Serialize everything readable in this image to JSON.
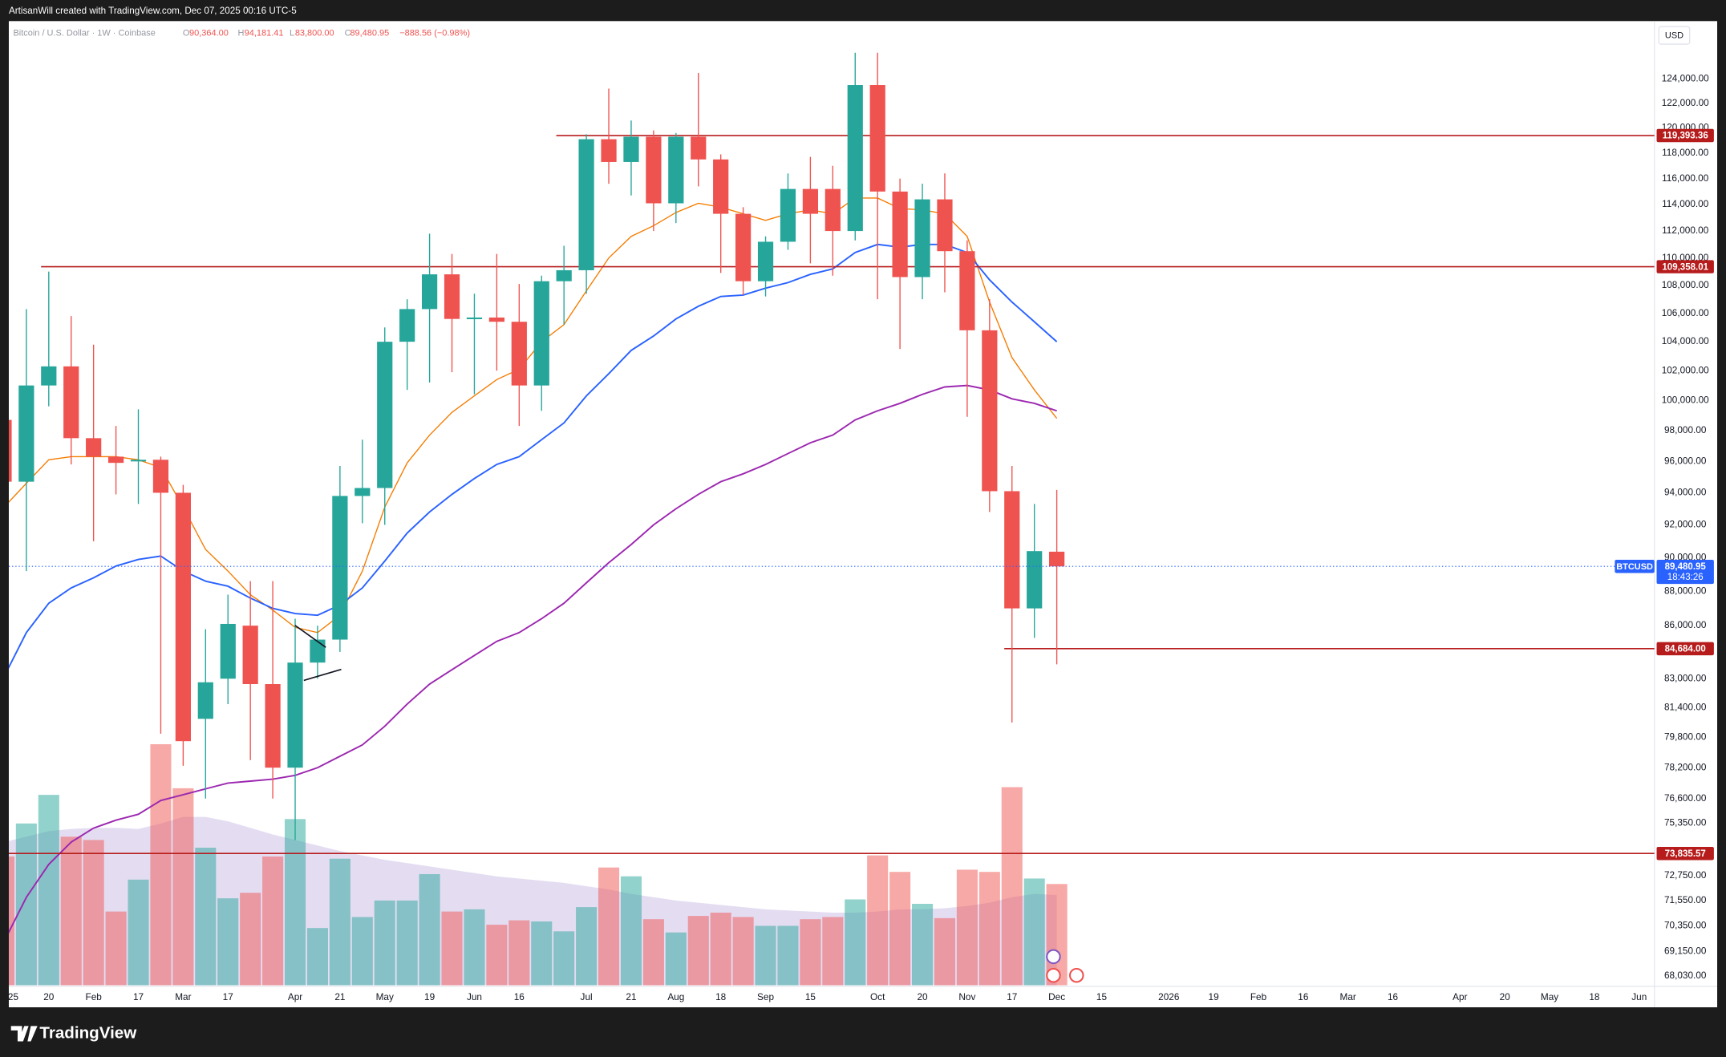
{
  "header": {
    "author_line": "ArtisanWill created with TradingView.com, Dec 07, 2025 00:16 UTC-5"
  },
  "legend": {
    "symbol": "Bitcoin / U.S. Dollar · 1W · Coinbase",
    "o_label": "O",
    "open": "90,364.00",
    "h_label": "H",
    "high": "94,181.41",
    "l_label": "L",
    "low": "83,800.00",
    "c_label": "C",
    "close": "89,480.95",
    "change": "−888.56 (−0.98%)"
  },
  "currency": "USD",
  "footer": {
    "brand": "TradingView"
  },
  "chart_data": {
    "type": "candlestick",
    "log_scale": true,
    "ylim": [
      67600,
      128900
    ],
    "yticks": [
      {
        "value": 124000,
        "label": "124,000.00"
      },
      {
        "value": 122000,
        "label": "122,000.00"
      },
      {
        "value": 120000,
        "label": "120,000.00"
      },
      {
        "value": 118000,
        "label": "118,000.00"
      },
      {
        "value": 116000,
        "label": "116,000.00"
      },
      {
        "value": 114000,
        "label": "114,000.00"
      },
      {
        "value": 112000,
        "label": "112,000.00"
      },
      {
        "value": 110000,
        "label": "110,000.00"
      },
      {
        "value": 108000,
        "label": "108,000.00"
      },
      {
        "value": 106000,
        "label": "106,000.00"
      },
      {
        "value": 104000,
        "label": "104,000.00"
      },
      {
        "value": 102000,
        "label": "102,000.00"
      },
      {
        "value": 100000,
        "label": "100,000.00"
      },
      {
        "value": 98000,
        "label": "98,000.00"
      },
      {
        "value": 96000,
        "label": "96,000.00"
      },
      {
        "value": 94000,
        "label": "94,000.00"
      },
      {
        "value": 92000,
        "label": "92,000.00"
      },
      {
        "value": 90000,
        "label": "90,000.00"
      },
      {
        "value": 88000,
        "label": "88,000.00"
      },
      {
        "value": 86000,
        "label": "86,000.00"
      },
      {
        "value": 83000,
        "label": "83,000.00"
      },
      {
        "value": 81400,
        "label": "81,400.00"
      },
      {
        "value": 79800,
        "label": "79,800.00"
      },
      {
        "value": 78200,
        "label": "78,200.00"
      },
      {
        "value": 76600,
        "label": "76,600.00"
      },
      {
        "value": 75350,
        "label": "75,350.00"
      },
      {
        "value": 72750,
        "label": "72,750.00"
      },
      {
        "value": 71550,
        "label": "71,550.00"
      },
      {
        "value": 70350,
        "label": "70,350.00"
      },
      {
        "value": 69150,
        "label": "69,150.00"
      },
      {
        "value": 68030,
        "label": "68,030.00"
      }
    ],
    "categories": [
      "25",
      null,
      "20",
      null,
      "Feb",
      null,
      "17",
      null,
      "Mar",
      null,
      "17",
      null,
      null,
      "Apr",
      null,
      "21",
      null,
      "May",
      null,
      "19",
      null,
      "Jun",
      null,
      "16",
      null,
      null,
      "Jul",
      null,
      "21",
      null,
      "Aug",
      null,
      "18",
      null,
      "Sep",
      null,
      "15",
      null,
      null,
      "Oct",
      null,
      "20",
      null,
      "Nov",
      null,
      "17",
      null,
      "Dec",
      null,
      "15",
      null,
      null,
      "2026",
      null,
      "19",
      null,
      "Feb",
      null,
      "16",
      null,
      "Mar",
      null,
      "16",
      null,
      null,
      "Apr",
      null,
      "20",
      null,
      "May",
      null,
      "18",
      null,
      "Jun"
    ],
    "open": [
      98700,
      94700,
      101000,
      102300,
      97500,
      96300,
      96000,
      96100,
      94000,
      80800,
      83000,
      86000,
      82700,
      78200,
      83900,
      85200,
      93800,
      94300,
      104000,
      106300,
      108800,
      105600,
      105700,
      105400,
      101000,
      108300,
      109100,
      119100,
      117300,
      119300,
      114100,
      119300,
      117500,
      113300,
      108300,
      111200,
      115200,
      115200,
      112000,
      123500,
      115000,
      108600,
      114400,
      110500,
      104800,
      94100,
      87000,
      90364,
      null,
      null,
      null,
      null,
      null,
      null,
      null,
      null,
      null,
      null,
      null,
      null,
      null,
      null,
      null,
      null,
      null,
      null,
      null,
      null,
      null,
      null,
      null,
      null,
      null,
      null
    ],
    "high": [
      99200,
      106300,
      109000,
      105800,
      103800,
      98300,
      99400,
      96300,
      94500,
      85800,
      87800,
      88600,
      88600,
      86400,
      86000,
      95700,
      97400,
      105000,
      107000,
      111800,
      110300,
      107400,
      110300,
      108100,
      108700,
      110900,
      119500,
      123200,
      120600,
      119800,
      119600,
      124500,
      117900,
      113800,
      111600,
      116400,
      117700,
      117000,
      126200,
      126200,
      116000,
      115600,
      116400,
      111300,
      107000,
      95700,
      93300,
      94181.41,
      null,
      null,
      null,
      null,
      null,
      null,
      null,
      null,
      null,
      null,
      null,
      null,
      null,
      null,
      null,
      null,
      null,
      null,
      null,
      null,
      null,
      null,
      null,
      null,
      null,
      null
    ],
    "low": [
      93300,
      89200,
      99600,
      95800,
      91000,
      93900,
      93300,
      80000,
      78300,
      76600,
      81600,
      78600,
      76600,
      74500,
      83000,
      84500,
      92100,
      92000,
      100700,
      101200,
      101900,
      100400,
      102000,
      98300,
      99300,
      105200,
      107400,
      115600,
      114700,
      112000,
      112600,
      115400,
      108900,
      107300,
      107200,
      110600,
      109600,
      108700,
      111300,
      107000,
      103500,
      107000,
      107500,
      98900,
      92800,
      80600,
      85300,
      83800,
      null,
      null,
      null,
      null,
      null,
      null,
      null,
      null,
      null,
      null,
      null,
      null,
      null,
      null,
      null,
      null,
      null,
      null,
      null,
      null,
      null,
      null,
      null,
      null,
      null,
      null
    ],
    "close": [
      94700,
      101000,
      102300,
      97500,
      96300,
      95900,
      96100,
      94000,
      79600,
      82800,
      86100,
      82700,
      78200,
      83900,
      85200,
      93800,
      94300,
      104000,
      106300,
      108800,
      105600,
      105700,
      105400,
      101000,
      108300,
      109100,
      119100,
      117300,
      119300,
      114100,
      119300,
      117500,
      113300,
      108300,
      111200,
      115200,
      113300,
      112000,
      123500,
      115000,
      108600,
      114400,
      110500,
      104800,
      94100,
      87000,
      90400,
      89480.95,
      null,
      null,
      null,
      null,
      null,
      null,
      null,
      null,
      null,
      null,
      null,
      null,
      null,
      null,
      null,
      null,
      null,
      null,
      null,
      null,
      null,
      null,
      null,
      null,
      null,
      null
    ],
    "up_color": "#26a69a",
    "down_color": "#ef5350",
    "volume": [
      117,
      147,
      173,
      135,
      132,
      67,
      96,
      219,
      179,
      125,
      79,
      84,
      117,
      151,
      52,
      115,
      62,
      77,
      77,
      101,
      67,
      69,
      55,
      59,
      58,
      49,
      71,
      107,
      99,
      60,
      48,
      63,
      66,
      62,
      54,
      54,
      60,
      62,
      78,
      118,
      103,
      74,
      61,
      105,
      103,
      180,
      97,
      92,
      null,
      null,
      null,
      null,
      null,
      null,
      null,
      null,
      null,
      null,
      null,
      null,
      null,
      null,
      null,
      null,
      null,
      null,
      null,
      null,
      null,
      null,
      null,
      null,
      null,
      null
    ],
    "volume_ma": [
      130,
      135,
      140,
      142,
      143,
      143,
      142,
      147,
      153,
      153,
      149,
      143,
      137,
      132,
      127,
      122,
      118,
      114,
      111,
      108,
      105,
      102,
      99,
      97,
      95,
      93,
      90,
      87,
      83,
      80,
      77,
      75,
      73,
      71,
      69,
      68,
      67,
      66,
      66,
      67,
      69,
      69,
      70,
      72,
      75,
      80,
      83,
      82,
      null,
      null,
      null,
      null,
      null,
      null,
      null,
      null,
      null,
      null,
      null,
      null,
      null,
      null,
      null,
      null,
      null,
      null,
      null,
      null,
      null,
      null,
      null,
      null,
      null,
      null
    ],
    "volume_ma_color": "#b39ddb",
    "moving_averages": [
      {
        "color": "#f57c00",
        "values": [
          93100,
          94600,
          96100,
          96300,
          96300,
          96300,
          96100,
          95600,
          93100,
          90500,
          89200,
          87800,
          86900,
          85900,
          85600,
          86600,
          89200,
          93100,
          95900,
          97700,
          99200,
          100300,
          101400,
          102100,
          104000,
          105200,
          107600,
          110000,
          111600,
          112400,
          113400,
          114100,
          113800,
          113300,
          112800,
          113300,
          113600,
          113300,
          114500,
          114500,
          113700,
          113600,
          113300,
          111600,
          106800,
          102900,
          100700,
          98800,
          null,
          null,
          null,
          null,
          null,
          null,
          null,
          null,
          null,
          null,
          null,
          null,
          null,
          null,
          null,
          null,
          null,
          null,
          null,
          null,
          null,
          null,
          null,
          null,
          null,
          null
        ]
      },
      {
        "color": "#2962ff",
        "values": [
          83100,
          85600,
          87300,
          88200,
          88800,
          89500,
          89900,
          90100,
          89200,
          88600,
          88300,
          87600,
          87000,
          86700,
          86600,
          87200,
          88200,
          89800,
          91500,
          92800,
          93900,
          94900,
          95800,
          96300,
          97400,
          98500,
          100300,
          101800,
          103400,
          104400,
          105600,
          106500,
          107200,
          107300,
          107800,
          108200,
          108800,
          109200,
          110400,
          111000,
          110800,
          111000,
          111000,
          110400,
          108400,
          106800,
          105400,
          104000,
          null,
          null,
          null,
          null,
          null,
          null,
          null,
          null,
          null,
          null,
          null,
          null,
          null,
          null,
          null,
          null,
          null,
          null,
          null,
          null,
          null,
          null,
          null,
          null,
          null,
          null
        ]
      },
      {
        "color": "#9c27b0",
        "values": [
          69600,
          71700,
          73300,
          74400,
          75100,
          75500,
          75800,
          76500,
          76800,
          77100,
          77400,
          77500,
          77600,
          77800,
          78200,
          78800,
          79400,
          80400,
          81600,
          82700,
          83500,
          84300,
          85100,
          85600,
          86400,
          87300,
          88500,
          89700,
          90800,
          92000,
          93000,
          93900,
          94700,
          95200,
          95800,
          96500,
          97200,
          97700,
          98700,
          99300,
          99800,
          100400,
          100900,
          101000,
          100700,
          100100,
          99800,
          99300,
          null,
          null,
          null,
          null,
          null,
          null,
          null,
          null,
          null,
          null,
          null,
          null,
          null,
          null,
          null,
          null,
          null,
          null,
          null,
          null,
          null,
          null,
          null,
          null,
          null,
          null
        ]
      }
    ],
    "levels": [
      {
        "value": 119393.36,
        "label": "119,393.36"
      },
      {
        "value": 109358.01,
        "label": "109,358.01"
      },
      {
        "value": 84684.0,
        "label": "84,684.00"
      },
      {
        "value": 73835.57,
        "label": "73,835.57"
      }
    ],
    "level_color": "#b71c1c",
    "last_price": {
      "name": "BTCUSD",
      "value": 89480.95,
      "label": "89,480.95",
      "countdown": "18:43:26",
      "color": "#2962ff"
    }
  }
}
